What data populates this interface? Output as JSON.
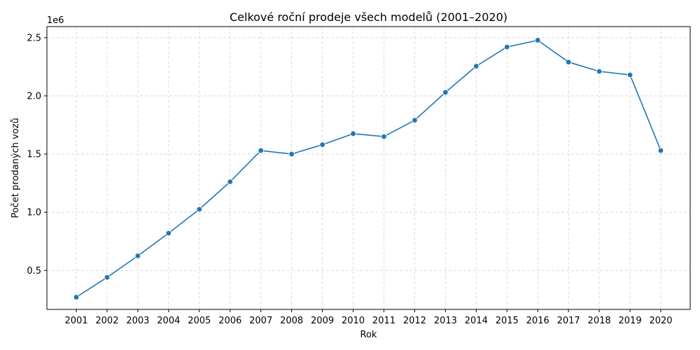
{
  "chart_data": {
    "type": "line",
    "title": "Celkové roční prodeje všech modelů (2001–2020)",
    "xlabel": "Rok",
    "ylabel": "Počet prodaných vozů",
    "y_offset_label": "1e6",
    "categories": [
      "2001",
      "2002",
      "2003",
      "2004",
      "2005",
      "2006",
      "2007",
      "2008",
      "2009",
      "2010",
      "2011",
      "2012",
      "2013",
      "2014",
      "2015",
      "2016",
      "2017",
      "2018",
      "2019",
      "2020"
    ],
    "series": [
      {
        "values": [
          270000,
          440000,
          625000,
          820000,
          1025000,
          1262000,
          1530000,
          1500000,
          1580000,
          1675000,
          1650000,
          1790000,
          2030000,
          2255000,
          2420000,
          2478000,
          2290000,
          2210000,
          2180000,
          1530000
        ],
        "color": "#1f77b4",
        "marker": "circle"
      }
    ],
    "yticks": [
      0.5,
      1.0,
      1.5,
      2.0,
      2.5
    ],
    "ytick_labels": [
      "0.5",
      "1.0",
      "1.5",
      "2.0",
      "2.5"
    ],
    "ylim": [
      0.165,
      2.595
    ],
    "grid": true,
    "grid_style": "dashed"
  }
}
